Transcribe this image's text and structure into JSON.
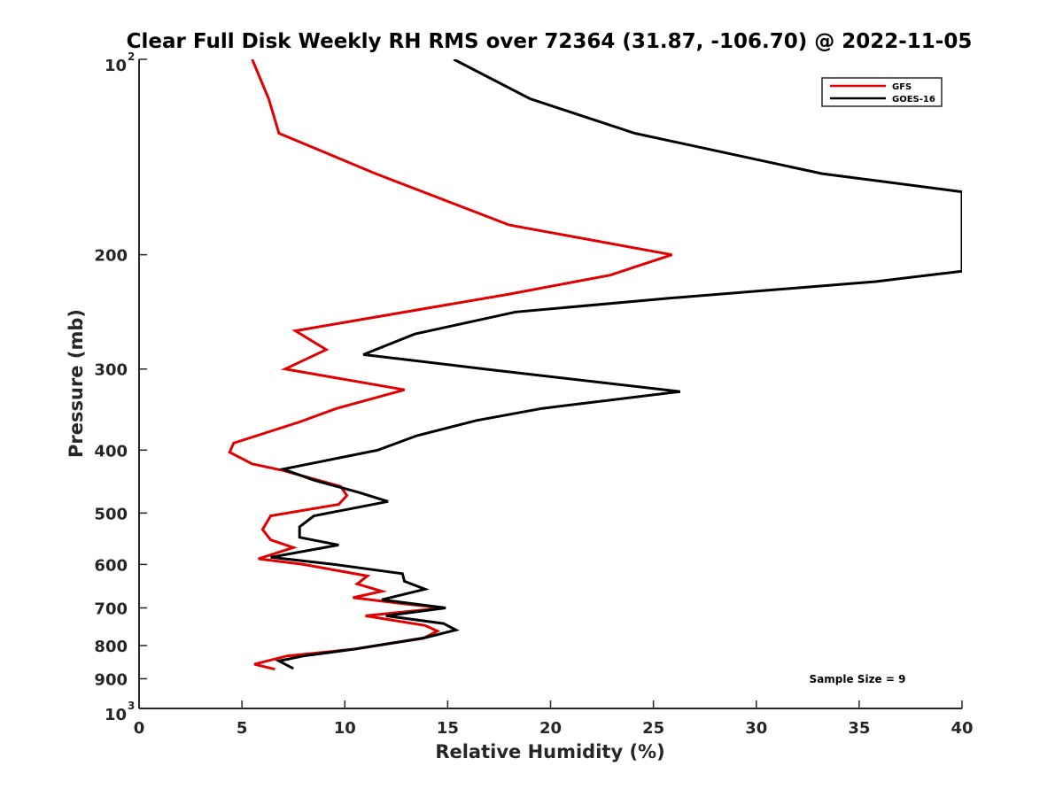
{
  "chart_data": {
    "type": "line",
    "title": "Clear Full Disk Weekly RH RMS over 72364 (31.87, -106.70) @ 2022-11-05",
    "xlabel": "Relative Humidity (%)",
    "ylabel": "Pressure (mb)",
    "xlim": [
      0,
      40
    ],
    "ylim": [
      100,
      1000
    ],
    "y_scale": "log",
    "y_reversed": true,
    "x_ticks": [
      0,
      5,
      10,
      15,
      20,
      25,
      30,
      35,
      40
    ],
    "y_ticks": [
      {
        "value": 100,
        "label": "10",
        "sup": "2"
      },
      {
        "value": 200,
        "label": "200"
      },
      {
        "value": 300,
        "label": "300"
      },
      {
        "value": 400,
        "label": "400"
      },
      {
        "value": 500,
        "label": "500"
      },
      {
        "value": 600,
        "label": "600"
      },
      {
        "value": 700,
        "label": "700"
      },
      {
        "value": 800,
        "label": "800"
      },
      {
        "value": 900,
        "label": "900"
      },
      {
        "value": 1000,
        "label": "10",
        "sup": "3"
      }
    ],
    "grid": false,
    "legend_position": "top-right",
    "annotation": "Sample Size = 9",
    "series": [
      {
        "name": "GFS",
        "color": "#e00000",
        "points": [
          [
            5.5,
            100
          ],
          [
            6.3,
            115
          ],
          [
            6.8,
            130
          ],
          [
            11.5,
            150
          ],
          [
            18.0,
            180
          ],
          [
            25.9,
            200
          ],
          [
            22.9,
            215
          ],
          [
            18.0,
            230
          ],
          [
            7.6,
            262
          ],
          [
            9.1,
            280
          ],
          [
            7.1,
            300
          ],
          [
            12.9,
            323
          ],
          [
            9.6,
            345
          ],
          [
            7.8,
            362
          ],
          [
            4.6,
            390
          ],
          [
            4.4,
            403
          ],
          [
            5.5,
            420
          ],
          [
            7.0,
            430
          ],
          [
            9.8,
            455
          ],
          [
            10.1,
            470
          ],
          [
            9.7,
            485
          ],
          [
            6.4,
            505
          ],
          [
            6.0,
            530
          ],
          [
            6.4,
            550
          ],
          [
            7.5,
            565
          ],
          [
            5.8,
            588
          ],
          [
            8.0,
            600
          ],
          [
            11.1,
            625
          ],
          [
            10.6,
            643
          ],
          [
            11.8,
            660
          ],
          [
            10.4,
            675
          ],
          [
            12.9,
            690
          ],
          [
            14.8,
            700
          ],
          [
            11.0,
            720
          ],
          [
            13.9,
            745
          ],
          [
            14.5,
            760
          ],
          [
            13.8,
            780
          ],
          [
            10.5,
            810
          ],
          [
            7.2,
            830
          ],
          [
            5.6,
            855
          ],
          [
            6.6,
            870
          ]
        ]
      },
      {
        "name": "GOES-16",
        "color": "#000000",
        "points": [
          [
            15.3,
            100
          ],
          [
            19.0,
            115
          ],
          [
            24.1,
            130
          ],
          [
            33.2,
            150
          ],
          [
            40.0,
            160
          ],
          [
            40.0,
            212
          ],
          [
            35.8,
            220
          ],
          [
            26.0,
            233
          ],
          [
            18.3,
            245
          ],
          [
            13.4,
            265
          ],
          [
            10.9,
            285
          ],
          [
            16.8,
            300
          ],
          [
            26.3,
            325
          ],
          [
            19.6,
            345
          ],
          [
            16.4,
            360
          ],
          [
            13.5,
            380
          ],
          [
            11.6,
            400
          ],
          [
            7.0,
            428
          ],
          [
            8.5,
            445
          ],
          [
            10.7,
            465
          ],
          [
            12.1,
            480
          ],
          [
            8.5,
            505
          ],
          [
            7.8,
            525
          ],
          [
            7.8,
            545
          ],
          [
            9.7,
            560
          ],
          [
            6.4,
            585
          ],
          [
            9.5,
            600
          ],
          [
            12.8,
            620
          ],
          [
            12.9,
            637
          ],
          [
            13.9,
            655
          ],
          [
            11.8,
            680
          ],
          [
            14.9,
            700
          ],
          [
            12.0,
            720
          ],
          [
            14.8,
            740
          ],
          [
            15.4,
            757
          ],
          [
            13.9,
            778
          ],
          [
            10.5,
            810
          ],
          [
            8.0,
            830
          ],
          [
            6.8,
            845
          ],
          [
            7.5,
            868
          ]
        ]
      }
    ]
  }
}
